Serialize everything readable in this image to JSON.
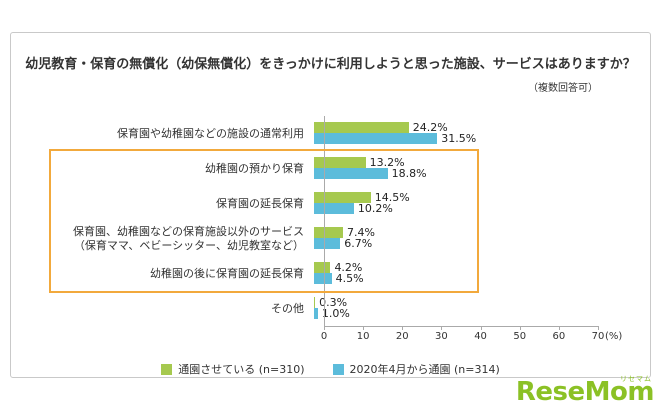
{
  "chart_data": {
    "type": "bar",
    "orientation": "horizontal",
    "title": "幼児教育・保育の無償化（幼保無償化）をきっかけに利用しようと思った施設、サービスはありますか？",
    "subtitle": "（複数回答可）",
    "categories": [
      "保育園や幼稚園などの施設の通常利用",
      "幼稚園の預かり保育",
      "保育園の延長保育",
      "保育園、幼稚園などの保育施設以外のサービス\n（保育ママ、ベビーシッター、幼児教室など）",
      "幼稚園の後に保育園の延長保育",
      "その他"
    ],
    "series": [
      {
        "name": "通園させている (n=310)",
        "color": "#a6c94f",
        "values": [
          24.2,
          13.2,
          14.5,
          7.4,
          4.2,
          0.3
        ]
      },
      {
        "name": "2020年4月から通園 (n=314)",
        "color": "#5cbcdb",
        "values": [
          31.5,
          18.8,
          10.2,
          6.7,
          4.5,
          1.0
        ]
      }
    ],
    "xlim": [
      0,
      70
    ],
    "xticks": [
      0,
      10,
      20,
      30,
      40,
      50,
      60,
      70
    ],
    "x_unit": "(%)",
    "legend_position": "bottom",
    "grid": false,
    "highlight": {
      "from_category": 1,
      "to_category": 4,
      "color": "#f2a93c"
    }
  },
  "branding": {
    "name": "ReseMom",
    "ruby": "リセマム"
  }
}
